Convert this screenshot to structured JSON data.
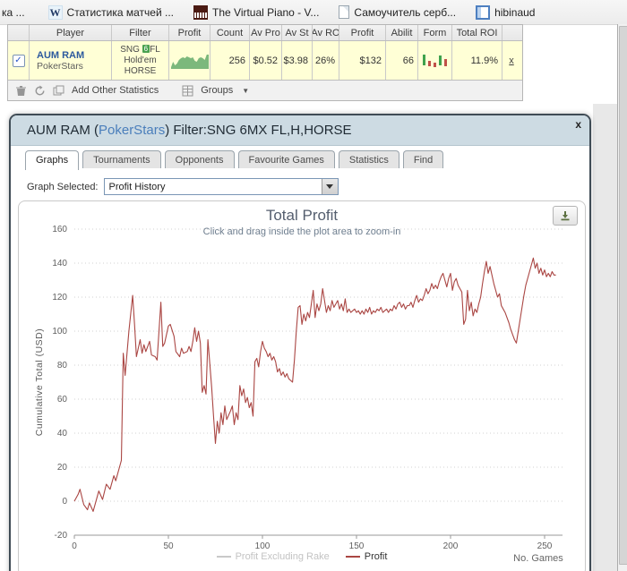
{
  "bookmarks_bar": {
    "items": [
      {
        "label": "ка ...",
        "icon": "bookmark-cutoff"
      },
      {
        "label": "Статистика матчей ...",
        "icon": "wikipedia-icon",
        "icon_glyph": "W"
      },
      {
        "label": "The Virtual Piano - V...",
        "icon": "piano-icon"
      },
      {
        "label": "Самоучитель серб...",
        "icon": "page-icon"
      },
      {
        "label": "hibinaud",
        "icon": "window-icon"
      }
    ]
  },
  "stats_table": {
    "headers": [
      "",
      "Player",
      "Filter",
      "Profit",
      "Count",
      "Av Pro",
      "Av St",
      "Av RO",
      "Profit",
      "Abilit",
      "Form",
      "Total ROI",
      ""
    ],
    "row": {
      "checked": true,
      "check_glyph": "✓",
      "player_name": "AUM RAM",
      "player_site": "PokerStars",
      "filter_line1_a": "SNG ",
      "filter_badge": "6",
      "filter_line1_b": "FL",
      "filter_line2": "Hold'em",
      "filter_line3": "HORSE",
      "count": "256",
      "av_profit": "$0.52",
      "av_stake": "$3.98",
      "av_roi": "26%",
      "profit": "$132",
      "ability": "66",
      "total_roi": "11.9%",
      "remove_label": "x",
      "profit_sparkline": {
        "type": "area",
        "color": "#7cb87c",
        "heights": [
          2,
          8,
          4,
          6,
          10,
          12,
          13,
          12,
          14,
          13,
          12,
          13,
          9,
          8,
          12,
          13,
          12,
          10,
          16,
          16
        ]
      },
      "form_candles": {
        "green": "#3fa24d",
        "red": "#c05048",
        "bars": [
          {
            "c": "g",
            "y": 0,
            "h": 12
          },
          {
            "c": "r",
            "y": 7,
            "h": 6
          },
          {
            "c": "r",
            "y": 9,
            "h": 5
          },
          {
            "c": "g",
            "y": 1,
            "h": 11
          },
          {
            "c": "r",
            "y": 5,
            "h": 8
          }
        ]
      }
    },
    "footer": {
      "add_stats_label": "Add Other Statistics",
      "groups_label": "Groups"
    }
  },
  "dialog": {
    "title_player": "AUM RAM (",
    "title_site": "PokerStars",
    "title_filter": ") Filter:SNG 6MX FL,H,HORSE",
    "close_label": "x",
    "tabs": [
      {
        "label": "Graphs",
        "active": true
      },
      {
        "label": "Tournaments",
        "active": false
      },
      {
        "label": "Opponents",
        "active": false
      },
      {
        "label": "Favourite Games",
        "active": false
      },
      {
        "label": "Statistics",
        "active": false
      },
      {
        "label": "Find",
        "active": false
      }
    ],
    "graph_selected_label": "Graph Selected:",
    "graph_selected_value": "Profit History"
  },
  "chart_data": {
    "type": "line",
    "title": "Total Profit",
    "subtitle": "Click and drag inside the plot area to zoom-in",
    "ylabel": "Cumulative Total (USD)",
    "xlabel": "No. Games",
    "xlim": [
      0,
      258
    ],
    "ylim": [
      -20,
      160
    ],
    "xticks": [
      0,
      50,
      100,
      150,
      200,
      250
    ],
    "yticks": [
      -20,
      0,
      20,
      40,
      60,
      80,
      100,
      120,
      140,
      160
    ],
    "grid": "horizontal-dotted",
    "legend_position": "bottom-center",
    "legend": [
      {
        "name": "Profit Excluding Rake",
        "enabled": false,
        "color": "#c9c9c9"
      },
      {
        "name": "Profit",
        "enabled": true,
        "color": "#AA4643"
      }
    ],
    "series": [
      {
        "name": "Profit",
        "color": "#AA4643",
        "points": [
          [
            0,
            0
          ],
          [
            2,
            4
          ],
          [
            3,
            7
          ],
          [
            5,
            -2
          ],
          [
            7,
            -5
          ],
          [
            8,
            -1
          ],
          [
            10,
            -6
          ],
          [
            12,
            2
          ],
          [
            13,
            6
          ],
          [
            15,
            1
          ],
          [
            17,
            10
          ],
          [
            19,
            7
          ],
          [
            21,
            15
          ],
          [
            22,
            12
          ],
          [
            24,
            20
          ],
          [
            25,
            24
          ],
          [
            26,
            87
          ],
          [
            27,
            74
          ],
          [
            29,
            100
          ],
          [
            31,
            121
          ],
          [
            32,
            104
          ],
          [
            33,
            85
          ],
          [
            35,
            95
          ],
          [
            36,
            87
          ],
          [
            37,
            92
          ],
          [
            38,
            88
          ],
          [
            40,
            94
          ],
          [
            41,
            86
          ],
          [
            43,
            85
          ],
          [
            44,
            83
          ],
          [
            45,
            100
          ],
          [
            46,
            117
          ],
          [
            47,
            91
          ],
          [
            48,
            93
          ],
          [
            50,
            103
          ],
          [
            51,
            104
          ],
          [
            53,
            97
          ],
          [
            54,
            88
          ],
          [
            56,
            85
          ],
          [
            57,
            90
          ],
          [
            58,
            87
          ],
          [
            60,
            88
          ],
          [
            61,
            91
          ],
          [
            62,
            88
          ],
          [
            63,
            94
          ],
          [
            64,
            102
          ],
          [
            65,
            94
          ],
          [
            66,
            100
          ],
          [
            67,
            93
          ],
          [
            68,
            64
          ],
          [
            69,
            68
          ],
          [
            70,
            63
          ],
          [
            71,
            95
          ],
          [
            72,
            81
          ],
          [
            73,
            67
          ],
          [
            74,
            50
          ],
          [
            75,
            34
          ],
          [
            76,
            47
          ],
          [
            77,
            40
          ],
          [
            78,
            52
          ],
          [
            79,
            45
          ],
          [
            80,
            56
          ],
          [
            81,
            48
          ],
          [
            83,
            53
          ],
          [
            84,
            56
          ],
          [
            85,
            45
          ],
          [
            86,
            52
          ],
          [
            87,
            48
          ],
          [
            88,
            68
          ],
          [
            89,
            62
          ],
          [
            90,
            66
          ],
          [
            91,
            58
          ],
          [
            92,
            61
          ],
          [
            93,
            55
          ],
          [
            94,
            58
          ],
          [
            95,
            50
          ],
          [
            96,
            82
          ],
          [
            97,
            84
          ],
          [
            98,
            79
          ],
          [
            99,
            88
          ],
          [
            100,
            94
          ],
          [
            101,
            90
          ],
          [
            102,
            88
          ],
          [
            103,
            85
          ],
          [
            104,
            87
          ],
          [
            105,
            83
          ],
          [
            106,
            85
          ],
          [
            107,
            82
          ],
          [
            108,
            76
          ],
          [
            109,
            78
          ],
          [
            110,
            74
          ],
          [
            111,
            76
          ],
          [
            112,
            73
          ],
          [
            113,
            75
          ],
          [
            114,
            72
          ],
          [
            115,
            71
          ],
          [
            116,
            70
          ],
          [
            117,
            83
          ],
          [
            118,
            100
          ],
          [
            119,
            114
          ],
          [
            120,
            115
          ],
          [
            121,
            104
          ],
          [
            122,
            110
          ],
          [
            123,
            106
          ],
          [
            124,
            111
          ],
          [
            125,
            108
          ],
          [
            127,
            124
          ],
          [
            128,
            108
          ],
          [
            129,
            116
          ],
          [
            130,
            112
          ],
          [
            131,
            116
          ],
          [
            132,
            125
          ],
          [
            133,
            118
          ],
          [
            134,
            111
          ],
          [
            135,
            115
          ],
          [
            136,
            112
          ],
          [
            137,
            118
          ],
          [
            138,
            114
          ],
          [
            139,
            116
          ],
          [
            140,
            118
          ],
          [
            141,
            113
          ],
          [
            142,
            116
          ],
          [
            143,
            112
          ],
          [
            144,
            119
          ],
          [
            145,
            111
          ],
          [
            146,
            113
          ],
          [
            147,
            111
          ],
          [
            148,
            112
          ],
          [
            149,
            113
          ],
          [
            150,
            111
          ],
          [
            151,
            112
          ],
          [
            152,
            110
          ],
          [
            153,
            112
          ],
          [
            154,
            110
          ],
          [
            155,
            113
          ],
          [
            156,
            111
          ],
          [
            157,
            114
          ],
          [
            158,
            110
          ],
          [
            159,
            112
          ],
          [
            160,
            111
          ],
          [
            161,
            113
          ],
          [
            162,
            112
          ],
          [
            163,
            114
          ],
          [
            164,
            111
          ],
          [
            165,
            112
          ],
          [
            166,
            113
          ],
          [
            167,
            111
          ],
          [
            168,
            113
          ],
          [
            169,
            112
          ],
          [
            170,
            115
          ],
          [
            171,
            113
          ],
          [
            172,
            116
          ],
          [
            173,
            117
          ],
          [
            174,
            114
          ],
          [
            175,
            116
          ],
          [
            176,
            113
          ],
          [
            177,
            115
          ],
          [
            178,
            115
          ],
          [
            179,
            117
          ],
          [
            180,
            114
          ],
          [
            181,
            118
          ],
          [
            182,
            121
          ],
          [
            183,
            117
          ],
          [
            184,
            119
          ],
          [
            185,
            118
          ],
          [
            186,
            121
          ],
          [
            187,
            125
          ],
          [
            188,
            122
          ],
          [
            189,
            124
          ],
          [
            190,
            128
          ],
          [
            191,
            125
          ],
          [
            192,
            127
          ],
          [
            193,
            125
          ],
          [
            194,
            129
          ],
          [
            195,
            132
          ],
          [
            196,
            134
          ],
          [
            197,
            130
          ],
          [
            198,
            126
          ],
          [
            199,
            131
          ],
          [
            200,
            134
          ],
          [
            201,
            124
          ],
          [
            202,
            129
          ],
          [
            203,
            131
          ],
          [
            204,
            127
          ],
          [
            205,
            125
          ],
          [
            206,
            123
          ],
          [
            207,
            104
          ],
          [
            208,
            107
          ],
          [
            209,
            124
          ],
          [
            210,
            112
          ],
          [
            211,
            117
          ],
          [
            212,
            109
          ],
          [
            213,
            113
          ],
          [
            214,
            111
          ],
          [
            215,
            116
          ],
          [
            216,
            120
          ],
          [
            217,
            128
          ],
          [
            218,
            135
          ],
          [
            219,
            141
          ],
          [
            220,
            134
          ],
          [
            221,
            138
          ],
          [
            222,
            133
          ],
          [
            223,
            128
          ],
          [
            224,
            124
          ],
          [
            225,
            120
          ],
          [
            226,
            122
          ],
          [
            227,
            115
          ],
          [
            228,
            113
          ],
          [
            229,
            111
          ],
          [
            230,
            108
          ],
          [
            231,
            105
          ],
          [
            232,
            101
          ],
          [
            233,
            98
          ],
          [
            234,
            95
          ],
          [
            235,
            93
          ],
          [
            236,
            100
          ],
          [
            237,
            107
          ],
          [
            238,
            114
          ],
          [
            239,
            121
          ],
          [
            240,
            127
          ],
          [
            241,
            131
          ],
          [
            242,
            135
          ],
          [
            243,
            139
          ],
          [
            244,
            143
          ],
          [
            245,
            137
          ],
          [
            246,
            140
          ],
          [
            247,
            134
          ],
          [
            248,
            137
          ],
          [
            249,
            133
          ],
          [
            250,
            136
          ],
          [
            251,
            132
          ],
          [
            252,
            134
          ],
          [
            253,
            132
          ],
          [
            254,
            135
          ],
          [
            255,
            133
          ],
          [
            256,
            133
          ]
        ]
      }
    ]
  }
}
